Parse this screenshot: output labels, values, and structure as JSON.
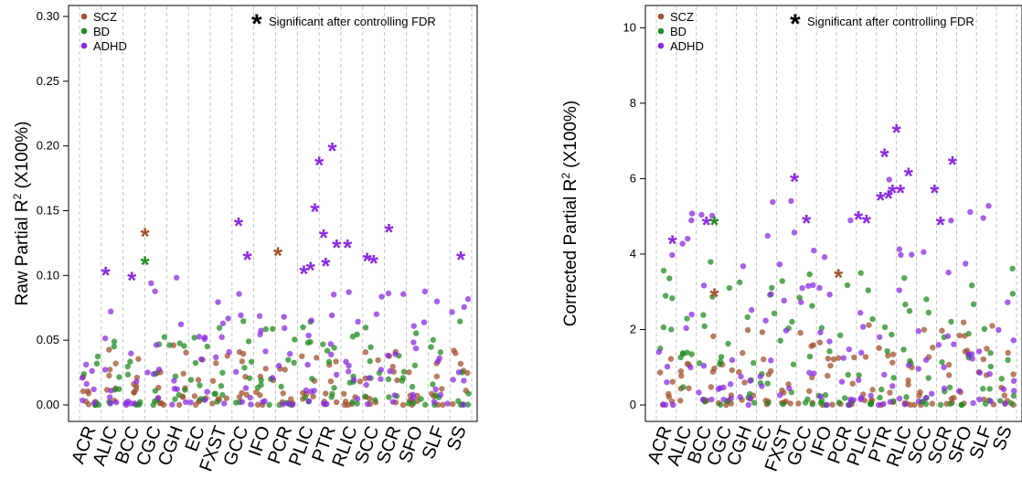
{
  "chart_data": [
    {
      "type": "scatter",
      "ylabel": "Raw Partial R",
      "ylabel_sup": "2",
      "ylabel_suffix": " (X100%)",
      "ylim": [
        0,
        0.3
      ],
      "yticks": [
        "0.00",
        "0.05",
        "0.10",
        "0.15",
        "0.20",
        "0.25",
        "0.30"
      ],
      "ytick_values": [
        0,
        0.05,
        0.1,
        0.15,
        0.2,
        0.25,
        0.3
      ],
      "categories": [
        "ACR",
        "ALIC",
        "BCC",
        "CGC",
        "CGH",
        "EC",
        "FXST",
        "GCC",
        "IFO",
        "PCR",
        "PLIC",
        "PTR",
        "RLIC",
        "SCC",
        "SCR",
        "SFO",
        "SLF",
        "SS"
      ],
      "legend": [
        "SCZ",
        "BD",
        "ADHD"
      ],
      "annotation": "Significant after controlling FDR",
      "annotation_symbol": "*",
      "significant": [
        {
          "x": 1.2,
          "y": 0.101,
          "group": "ADHD"
        },
        {
          "x": 2.4,
          "y": 0.097,
          "group": "ADHD"
        },
        {
          "x": 3.0,
          "y": 0.131,
          "group": "SCZ"
        },
        {
          "x": 3.0,
          "y": 0.109,
          "group": "BD"
        },
        {
          "x": 7.3,
          "y": 0.139,
          "group": "ADHD"
        },
        {
          "x": 7.7,
          "y": 0.113,
          "group": "ADHD"
        },
        {
          "x": 9.1,
          "y": 0.116,
          "group": "SCZ"
        },
        {
          "x": 10.3,
          "y": 0.102,
          "group": "ADHD"
        },
        {
          "x": 10.6,
          "y": 0.105,
          "group": "ADHD"
        },
        {
          "x": 10.8,
          "y": 0.15,
          "group": "ADHD"
        },
        {
          "x": 11.0,
          "y": 0.186,
          "group": "ADHD"
        },
        {
          "x": 11.2,
          "y": 0.13,
          "group": "ADHD"
        },
        {
          "x": 11.3,
          "y": 0.108,
          "group": "ADHD"
        },
        {
          "x": 11.6,
          "y": 0.197,
          "group": "ADHD"
        },
        {
          "x": 11.8,
          "y": 0.122,
          "group": "ADHD"
        },
        {
          "x": 12.3,
          "y": 0.122,
          "group": "ADHD"
        },
        {
          "x": 13.2,
          "y": 0.112,
          "group": "ADHD"
        },
        {
          "x": 13.5,
          "y": 0.11,
          "group": "ADHD"
        },
        {
          "x": 14.2,
          "y": 0.134,
          "group": "ADHD"
        },
        {
          "x": 17.5,
          "y": 0.113,
          "group": "ADHD"
        }
      ],
      "colors": {
        "SCZ": "#a0522d",
        "BD": "#228b22",
        "ADHD": "#8a2be2"
      }
    },
    {
      "type": "scatter",
      "ylabel": "Corrected Partial R",
      "ylabel_sup": "2",
      "ylabel_suffix": " (X100%)",
      "ylim": [
        0,
        10.3
      ],
      "yticks": [
        "0",
        "2",
        "4",
        "6",
        "8",
        "10"
      ],
      "ytick_values": [
        0,
        2,
        4,
        6,
        8,
        10
      ],
      "categories": [
        "ACR",
        "ALIC",
        "BCC",
        "CGC",
        "CGH",
        "EC",
        "FXST",
        "GCC",
        "IFO",
        "PCR",
        "PLIC",
        "PTR",
        "RLIC",
        "SCC",
        "SCR",
        "SFO",
        "SLF",
        "SS"
      ],
      "legend": [
        "SCZ",
        "BD",
        "ADHD"
      ],
      "annotation": "Significant after controlling FDR",
      "annotation_symbol": "*",
      "significant": [
        {
          "x": 0.8,
          "y": 4.3,
          "group": "ADHD"
        },
        {
          "x": 2.5,
          "y": 4.8,
          "group": "ADHD"
        },
        {
          "x": 2.9,
          "y": 4.8,
          "group": "BD"
        },
        {
          "x": 2.9,
          "y": 2.9,
          "group": "SCZ"
        },
        {
          "x": 6.9,
          "y": 5.95,
          "group": "ADHD"
        },
        {
          "x": 7.5,
          "y": 4.85,
          "group": "ADHD"
        },
        {
          "x": 9.1,
          "y": 3.4,
          "group": "SCZ"
        },
        {
          "x": 10.1,
          "y": 4.95,
          "group": "ADHD"
        },
        {
          "x": 10.5,
          "y": 4.85,
          "group": "ADHD"
        },
        {
          "x": 11.2,
          "y": 5.45,
          "group": "ADHD"
        },
        {
          "x": 11.4,
          "y": 6.6,
          "group": "ADHD"
        },
        {
          "x": 11.6,
          "y": 5.5,
          "group": "ADHD"
        },
        {
          "x": 11.8,
          "y": 5.65,
          "group": "ADHD"
        },
        {
          "x": 12.0,
          "y": 7.25,
          "group": "ADHD"
        },
        {
          "x": 12.2,
          "y": 5.65,
          "group": "ADHD"
        },
        {
          "x": 12.6,
          "y": 6.1,
          "group": "ADHD"
        },
        {
          "x": 13.9,
          "y": 5.65,
          "group": "ADHD"
        },
        {
          "x": 14.2,
          "y": 4.8,
          "group": "ADHD"
        },
        {
          "x": 14.8,
          "y": 6.4,
          "group": "ADHD"
        },
        {
          "x": 18.5,
          "y": 5.25,
          "group": "ADHD"
        }
      ],
      "colors": {
        "SCZ": "#a0522d",
        "BD": "#228b22",
        "ADHD": "#8a2be2"
      }
    }
  ]
}
